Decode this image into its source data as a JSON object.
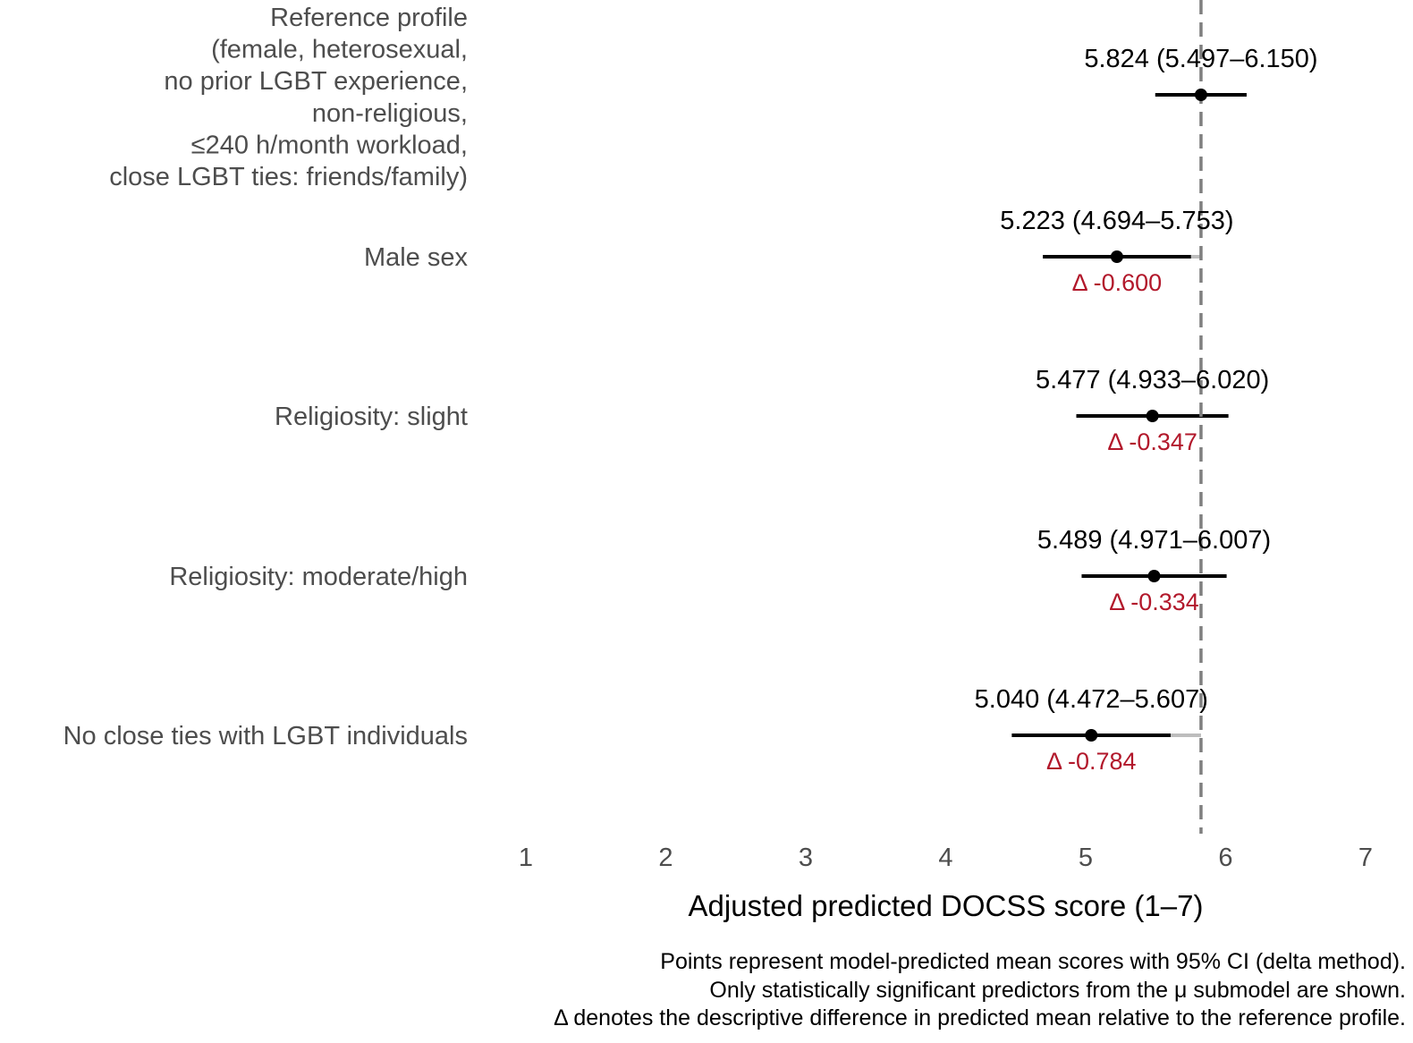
{
  "chart_data": {
    "type": "forest",
    "title": "",
    "xlabel": "Adjusted predicted DOCSS score (1–7)",
    "xlim": [
      1,
      7
    ],
    "xticks": [
      1,
      2,
      3,
      4,
      5,
      6,
      7
    ],
    "reference_value": 5.824,
    "rows": [
      {
        "label_lines": [
          "Reference profile",
          "(female, heterosexual,",
          "no prior LGBT experience,",
          "non-religious,",
          "≤240 h/month workload,",
          "close LGBT ties: friends/family)"
        ],
        "estimate": 5.824,
        "lower": 5.497,
        "upper": 6.15,
        "estimate_label": "5.824 (5.497–6.150)",
        "delta": null,
        "delta_label": null
      },
      {
        "label_lines": [
          "Male sex"
        ],
        "estimate": 5.223,
        "lower": 4.694,
        "upper": 5.753,
        "estimate_label": "5.223 (4.694–5.753)",
        "delta": -0.6,
        "delta_label": "Δ -0.600"
      },
      {
        "label_lines": [
          "Religiosity: slight"
        ],
        "estimate": 5.477,
        "lower": 4.933,
        "upper": 6.02,
        "estimate_label": "5.477 (4.933–6.020)",
        "delta": -0.347,
        "delta_label": "Δ -0.347"
      },
      {
        "label_lines": [
          "Religiosity: moderate/high"
        ],
        "estimate": 5.489,
        "lower": 4.971,
        "upper": 6.007,
        "estimate_label": "5.489 (4.971–6.007)",
        "delta": -0.334,
        "delta_label": "Δ -0.334"
      },
      {
        "label_lines": [
          "No close ties with LGBT individuals"
        ],
        "estimate": 5.04,
        "lower": 4.472,
        "upper": 5.607,
        "estimate_label": "5.040 (4.472–5.607)",
        "delta": -0.784,
        "delta_label": "Δ -0.784"
      }
    ],
    "caption_lines": [
      "Points represent model-predicted mean scores with 95% CI (delta method).",
      "Only statistically significant predictors from the μ submodel are shown.",
      "Δ denotes the descriptive difference in predicted mean relative to the reference profile."
    ]
  },
  "colors": {
    "point": "#000000",
    "ci_line": "#000000",
    "ref_line": "#7f7f7f",
    "delta_text": "#b2182b",
    "category_text": "#4d4d4d"
  }
}
